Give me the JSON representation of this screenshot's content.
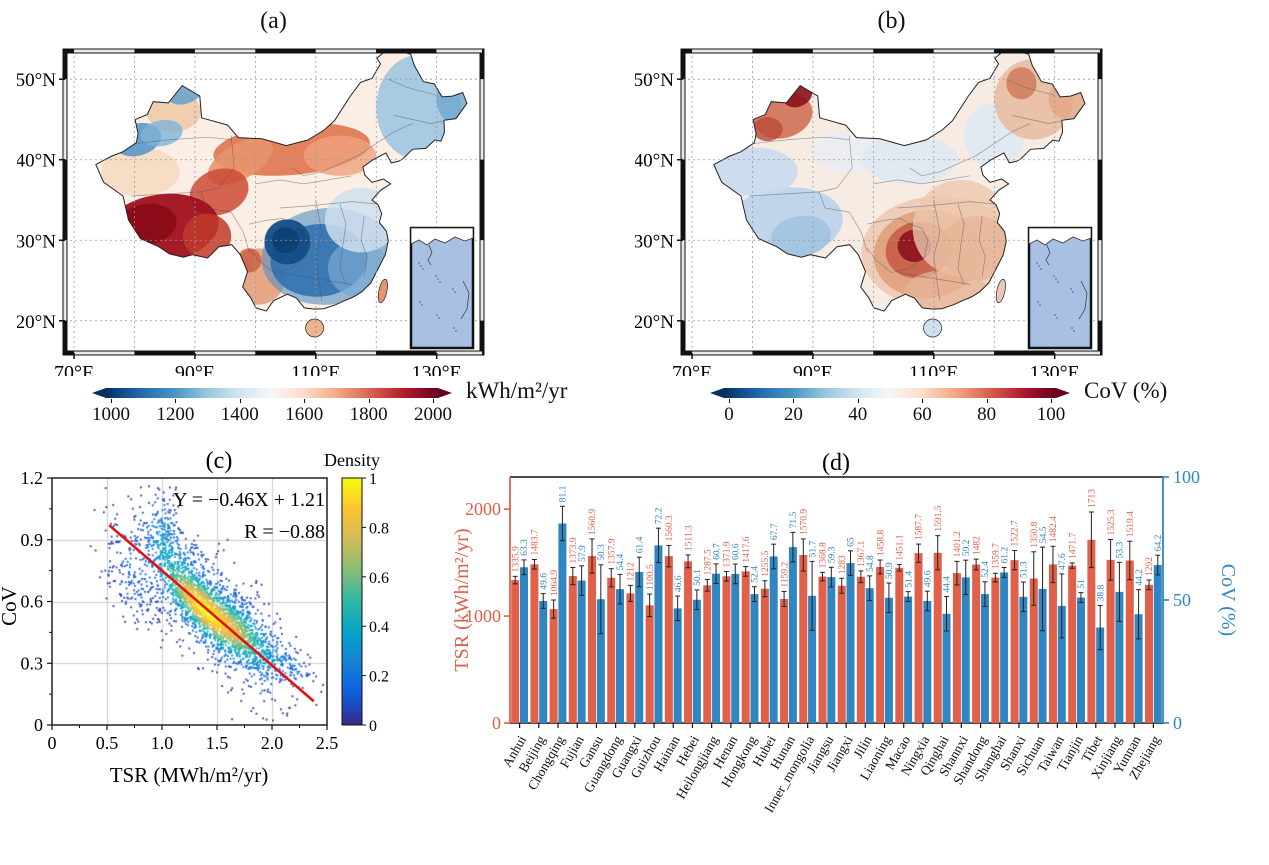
{
  "chart_data": [
    {
      "type": "heatmap",
      "panel": "a",
      "title": "(a)",
      "x_ticks": [
        "70°E",
        "90°E",
        "110°E",
        "130°E"
      ],
      "y_ticks": [
        "50°N",
        "40°N",
        "30°N",
        "20°N"
      ],
      "colorbar": {
        "label": "kWh/m²/yr",
        "ticks": [
          "1000",
          "1200",
          "1400",
          "1600",
          "1800",
          "2000"
        ],
        "min": 1000,
        "max": 2000,
        "colormap": "RdBu_r",
        "colors": [
          "#053061",
          "#2166ac",
          "#4393c3",
          "#92c5de",
          "#d1e5f0",
          "#f7f7f7",
          "#fddbc7",
          "#f4a582",
          "#d6604d",
          "#b2182b",
          "#67001f"
        ]
      }
    },
    {
      "type": "heatmap",
      "panel": "b",
      "title": "(b)",
      "x_ticks": [
        "70°E",
        "90°E",
        "110°E",
        "130°E"
      ],
      "y_ticks": [
        "50°N",
        "40°N",
        "30°N",
        "20°N"
      ],
      "colorbar": {
        "label": "CoV (%)",
        "ticks": [
          "0",
          "20",
          "40",
          "60",
          "80",
          "100"
        ],
        "min": 0,
        "max": 100,
        "colormap": "RdBu_r",
        "colors": [
          "#053061",
          "#2166ac",
          "#4393c3",
          "#92c5de",
          "#d1e5f0",
          "#f7f7f7",
          "#fddbc7",
          "#f4a582",
          "#d6604d",
          "#b2182b",
          "#67001f"
        ]
      }
    },
    {
      "type": "scatter",
      "panel": "c",
      "title": "(c)",
      "xlabel": "TSR (MWh/m²/yr)",
      "ylabel": "CoV",
      "xlim": [
        0,
        2.5
      ],
      "ylim": [
        0,
        1.2
      ],
      "x_ticks": [
        "0",
        "0.5",
        "1.0",
        "1.5",
        "2.0",
        "2.5"
      ],
      "y_ticks": [
        "0",
        "0.3",
        "0.6",
        "0.9",
        "1.2"
      ],
      "grid": true,
      "annotation_line1": "Y = −0.46X + 1.21",
      "annotation_line2": "R = −0.88",
      "regression": {
        "slope": -0.46,
        "intercept": 1.21,
        "r": -0.88,
        "line_x": [
          0.52,
          2.38
        ],
        "line_color": "#e51212"
      },
      "density_hotspots": [
        {
          "x": 1.32,
          "y": 0.6
        },
        {
          "x": 1.62,
          "y": 0.47
        }
      ],
      "colorbar": {
        "label": "Density",
        "ticks": [
          "1",
          "0.8",
          "0.6",
          "0.4",
          "0.2",
          "0"
        ],
        "min": 0,
        "max": 1,
        "colors": [
          "#352a87",
          "#0f5cdd",
          "#1481d6",
          "#06a4ca",
          "#2eb7a4",
          "#87bf77",
          "#d1bb59",
          "#fdc32f",
          "#f9fb0e"
        ]
      }
    },
    {
      "type": "bar",
      "panel": "d",
      "title": "(d)",
      "categories": [
        "Anhui",
        "Beijing",
        "Chongqing",
        "Fujian",
        "Gansu",
        "Guangdong",
        "Guangxi",
        "Guizhou",
        "Hainan",
        "Hebei",
        "Heilongjiang",
        "Henan",
        "Hongkong",
        "Hubei",
        "Hunan",
        "Inner_mongolia",
        "Jiangsu",
        "Jiangxi",
        "Jilin",
        "Liaoning",
        "Macao",
        "Ningxia",
        "Qinghai",
        "Shannxi",
        "Shandong",
        "Shanghai",
        "Shanxi",
        "Sichuan",
        "Taiwan",
        "Tianjin",
        "Tibet",
        "Xinjiang",
        "Yunnan",
        "Zhejiang"
      ],
      "series": [
        {
          "name": "TSR",
          "axis": "left",
          "color": "#e0604a",
          "values": [
            1335.9,
            1483.7,
            1064.9,
            1373.9,
            1560.9,
            1357.9,
            1212,
            1100.5,
            1560.3,
            1511.3,
            1287.5,
            1371.9,
            1417.6,
            1255.5,
            1159.2,
            1570.9,
            1368.8,
            1283,
            1367.1,
            1458.8,
            1451.1,
            1587.7,
            1591.5,
            1401.2,
            1482,
            1359.7,
            1522.7,
            1350.8,
            1482.4,
            1471.7,
            1713,
            1525.3,
            1519.4,
            1292
          ],
          "errors": [
            35,
            45,
            85,
            80,
            160,
            85,
            75,
            105,
            100,
            60,
            55,
            45,
            45,
            75,
            70,
            150,
            40,
            70,
            55,
            65,
            30,
            85,
            160,
            110,
            50,
            40,
            90,
            250,
            170,
            25,
            260,
            190,
            180,
            45
          ]
        },
        {
          "name": "CoV",
          "axis": "right",
          "color": "#2f86c0",
          "values": [
            63.3,
            49.6,
            81.1,
            57.9,
            50.3,
            54.4,
            61.4,
            72.2,
            46.6,
            50.1,
            60.7,
            60.6,
            52.4,
            67.7,
            71.5,
            51.7,
            59.3,
            65,
            54.8,
            50.9,
            51.4,
            49.6,
            44.4,
            59.2,
            52.4,
            61.2,
            51.3,
            54.5,
            47.6,
            51,
            38.8,
            53.3,
            44.2,
            64.2
          ],
          "errors": [
            3,
            3,
            7,
            6,
            14,
            6,
            6,
            7,
            5,
            4,
            4,
            4,
            3,
            5,
            6,
            14,
            4,
            5,
            5,
            6,
            2,
            4,
            7,
            7,
            5,
            2,
            6,
            17,
            13,
            2,
            9,
            12,
            10,
            4
          ]
        }
      ],
      "left_axis": {
        "label": "TSR (kWh/m²/yr)",
        "ticks": [
          "0",
          "1000",
          "2000"
        ],
        "max": 2300,
        "color": "#e0604a"
      },
      "right_axis": {
        "label": "CoV (%)",
        "ticks": [
          "0",
          "50",
          "100"
        ],
        "max": 100,
        "color": "#2f86c0"
      }
    }
  ],
  "ocean_color": "#a7c0e4"
}
